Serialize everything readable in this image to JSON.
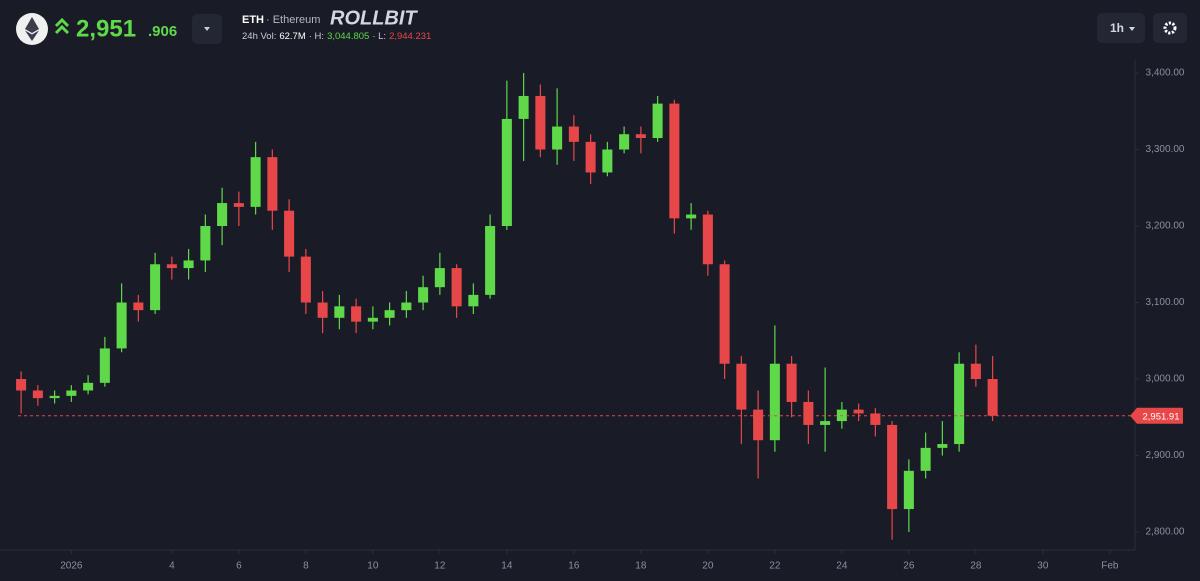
{
  "header": {
    "price_main": "2,951",
    "price_decimals": ".906",
    "symbol": "ETH",
    "name": "· Ethereum",
    "brand": "ROLLBIT",
    "stats": [
      {
        "label": "24h Vol:",
        "value": "62.7M"
      },
      {
        "label": "· H:",
        "value": "3,044.805"
      },
      {
        "label": "· L:",
        "value": "2,944.231"
      }
    ],
    "interval": "1h"
  },
  "chart_data": {
    "type": "candlestick",
    "up_color": "#5fd84a",
    "down_color": "#e8474a",
    "x": [
      -0.5,
      0,
      0.5,
      1,
      1.5,
      2,
      2.5,
      3,
      3.5,
      4,
      4.5,
      5,
      5.5,
      6,
      6.5,
      7,
      7.5,
      8,
      8.5,
      9,
      9.5,
      10,
      10.5,
      11,
      11.5,
      12,
      12.5,
      13,
      13.5,
      14,
      14.5,
      15,
      15.5,
      16,
      16.5,
      17,
      17.5,
      18,
      18.5,
      19,
      19.5,
      20,
      20.5,
      21,
      21.5,
      22,
      22.5,
      23,
      23.5,
      24,
      24.5,
      25,
      25.5,
      26,
      26.5,
      27,
      27.5,
      28,
      28.5
    ],
    "open": [
      3000,
      2985,
      2975,
      2978,
      2985,
      2995,
      3040,
      3100,
      3090,
      3150,
      3145,
      3155,
      3200,
      3230,
      3225,
      3290,
      3220,
      3160,
      3100,
      3080,
      3095,
      3075,
      3080,
      3090,
      3100,
      3120,
      3145,
      3095,
      3110,
      3200,
      3340,
      3370,
      3300,
      3330,
      3310,
      3270,
      3300,
      3320,
      3315,
      3360,
      3210,
      3215,
      3150,
      3020,
      2960,
      2920,
      3020,
      2970,
      2940,
      2945,
      2960,
      2955,
      2940,
      2830,
      2880,
      2910,
      2915,
      3020,
      3000
    ],
    "high": [
      3010,
      2992,
      2985,
      2992,
      3005,
      3055,
      3125,
      3110,
      3165,
      3160,
      3170,
      3215,
      3250,
      3245,
      3310,
      3300,
      3235,
      3170,
      3115,
      3110,
      3105,
      3095,
      3100,
      3115,
      3135,
      3165,
      3150,
      3125,
      3215,
      3390,
      3400,
      3385,
      3380,
      3345,
      3320,
      3310,
      3330,
      3330,
      3370,
      3365,
      3230,
      3220,
      3155,
      3030,
      2985,
      3070,
      3030,
      2985,
      3015,
      2970,
      2968,
      2962,
      2945,
      2895,
      2930,
      2945,
      3035,
      3045,
      3030
    ],
    "low": [
      2955,
      2965,
      2968,
      2970,
      2980,
      2990,
      3035,
      3075,
      3085,
      3130,
      3130,
      3140,
      3175,
      3200,
      3215,
      3195,
      3140,
      3085,
      3060,
      3065,
      3060,
      3065,
      3070,
      3080,
      3090,
      3110,
      3080,
      3085,
      3105,
      3195,
      3285,
      3290,
      3280,
      3285,
      3255,
      3265,
      3295,
      3295,
      3310,
      3190,
      3195,
      3135,
      3000,
      2915,
      2870,
      2905,
      2950,
      2915,
      2905,
      2935,
      2945,
      2925,
      2790,
      2800,
      2870,
      2900,
      2905,
      2990,
      2945
    ],
    "close": [
      2985,
      2975,
      2978,
      2985,
      2995,
      3040,
      3100,
      3090,
      3150,
      3145,
      3155,
      3200,
      3230,
      3225,
      3290,
      3220,
      3160,
      3100,
      3080,
      3095,
      3075,
      3080,
      3090,
      3100,
      3120,
      3145,
      3095,
      3110,
      3200,
      3340,
      3370,
      3300,
      3330,
      3310,
      3270,
      3300,
      3320,
      3315,
      3360,
      3210,
      3215,
      3150,
      3020,
      2960,
      2920,
      3020,
      2970,
      2940,
      2945,
      2960,
      2955,
      2940,
      2830,
      2880,
      2910,
      2915,
      3020,
      3000,
      2952
    ],
    "last_price": {
      "value": 2951.91,
      "label": "2,951.91"
    },
    "xlim": [
      -1.13,
      32.75
    ],
    "xticks": [
      {
        "value": 1,
        "label": "2026"
      },
      4,
      6,
      8,
      10,
      12,
      14,
      16,
      18,
      20,
      22,
      24,
      26,
      28,
      30,
      {
        "value": 32,
        "label": "Feb"
      }
    ],
    "ylim": [
      2776.5,
      3417
    ],
    "yticks": [
      {
        "value": 2800,
        "label": "2,800.00"
      },
      {
        "value": 2900,
        "label": "2,900.00"
      },
      {
        "value": 3000,
        "label": "3,000.00"
      },
      {
        "value": 3100,
        "label": "3,100.00"
      },
      {
        "value": 3200,
        "label": "3,200.00"
      },
      {
        "value": 3300,
        "label": "3,300.00"
      },
      {
        "value": 3400,
        "label": "3,400.00"
      }
    ]
  }
}
